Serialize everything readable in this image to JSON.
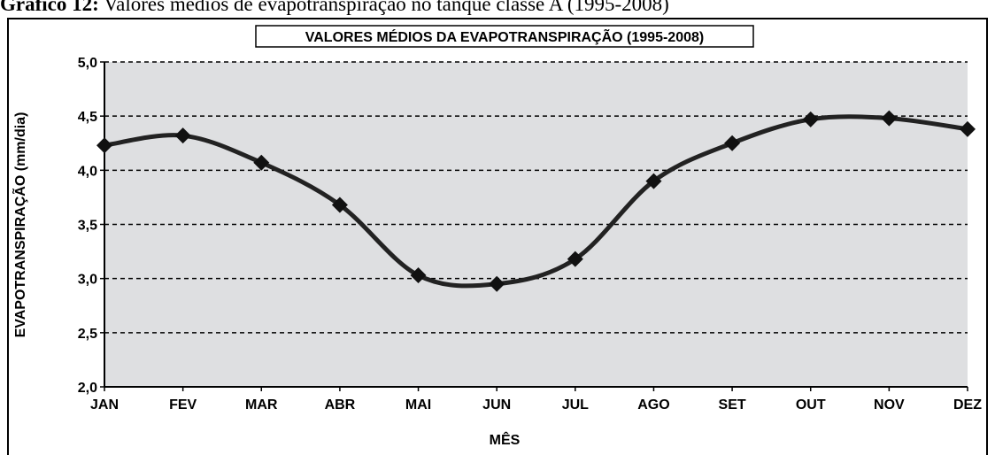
{
  "caption": {
    "label": "Gráfico 12:",
    "text": "Valores médios de evapotranspiração no tanque classe A (1995-2008)"
  },
  "chart_data": {
    "type": "line",
    "title": "VALORES MÉDIOS DA EVAPOTRANSPIRAÇÃO (1995-2008)",
    "x_label": "MÊS",
    "y_label": "EVAPOTRANSPIRAÇÃO (mm/dia)",
    "categories": [
      "JAN",
      "FEV",
      "MAR",
      "ABR",
      "MAI",
      "JUN",
      "JUL",
      "AGO",
      "SET",
      "OUT",
      "NOV",
      "DEZ"
    ],
    "values": [
      4.23,
      4.32,
      4.07,
      3.68,
      3.03,
      2.95,
      3.18,
      3.9,
      4.25,
      4.47,
      4.48,
      4.38
    ],
    "color": "#222222",
    "smooth": true,
    "grid": true,
    "ylim": [
      2,
      5
    ],
    "yticks": [
      {
        "value": 2,
        "label": "2,0"
      },
      {
        "value": 2.5,
        "label": "2,5"
      },
      {
        "value": 3,
        "label": "3,0"
      },
      {
        "value": 3.5,
        "label": "3,5"
      },
      {
        "value": 4,
        "label": "4,0"
      },
      {
        "value": 4.5,
        "label": "4,5"
      },
      {
        "value": 5,
        "label": "5,0"
      }
    ]
  }
}
